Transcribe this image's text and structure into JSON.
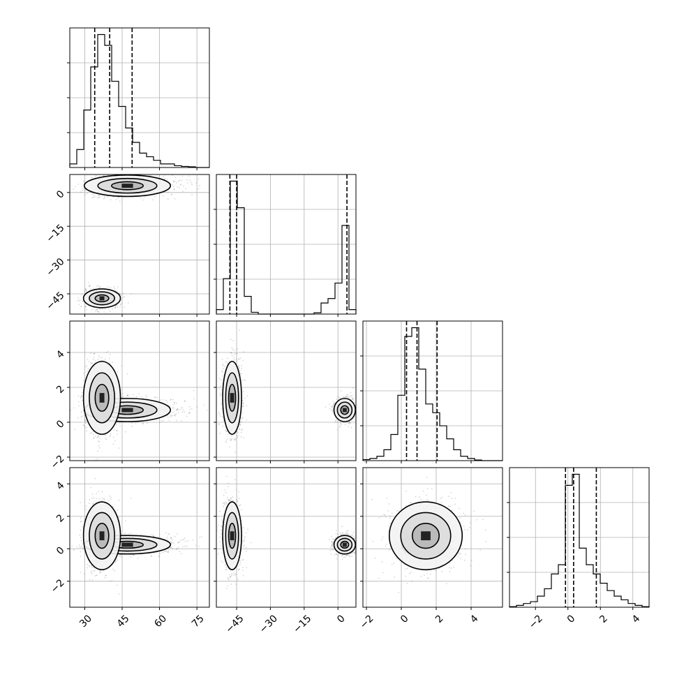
{
  "chart_data": {
    "type": "corner",
    "grid": true,
    "quantile_style": "dashed",
    "variables": [
      {
        "id": "p0",
        "label": "",
        "range": [
          24,
          80
        ],
        "ticks": [
          30,
          45,
          60,
          75
        ],
        "quantiles": [
          34,
          40,
          49
        ],
        "hist": {
          "edges": [
            24,
            26.8,
            29.6,
            32.4,
            35.2,
            38,
            40.8,
            43.6,
            46.4,
            49.2,
            52,
            54.8,
            57.6,
            60.4,
            63.2,
            66,
            68.8,
            71.6,
            74.4,
            77.2,
            80
          ],
          "counts": [
            1,
            5,
            16,
            28,
            37,
            34,
            24,
            17,
            11,
            7,
            4,
            3,
            2,
            1,
            1,
            0.5,
            0.3,
            0.2,
            0,
            0
          ]
        },
        "clusters": [
          {
            "w": 0.5,
            "mean": 45,
            "sd": 7,
            "skew": 1.7
          },
          {
            "w": 0.5,
            "mean": 36,
            "sd": 3,
            "skew": 1.3
          }
        ]
      },
      {
        "id": "p1",
        "label": "",
        "range": [
          -54,
          8
        ],
        "ticks": [
          0,
          -15,
          -30,
          -45
        ],
        "quantiles": [
          -48,
          -45,
          4
        ],
        "hist": {
          "edges": [
            -54,
            -50.9,
            -47.8,
            -44.7,
            -41.6,
            -38.5,
            -35.4,
            -32.3,
            -29.2,
            -26.1,
            -23,
            -19.9,
            -16.8,
            -13.7,
            -10.6,
            -7.5,
            -4.4,
            -1.3,
            1.8,
            4.9,
            8
          ],
          "counts": [
            1,
            8,
            30,
            24,
            4,
            0.4,
            0,
            0,
            0,
            0,
            0,
            0,
            0,
            0,
            0.3,
            2.5,
            3.5,
            7,
            20,
            1
          ]
        },
        "clusters": [
          {
            "w": 0.5,
            "mean": 3,
            "sd": 2.5,
            "skew": 1
          },
          {
            "w": 0.5,
            "mean": -47,
            "sd": 2.2,
            "skew": 1
          }
        ]
      },
      {
        "id": "p2",
        "label": "",
        "range": [
          -2.2,
          5.8
        ],
        "ticks": [
          -2,
          0,
          2,
          4
        ],
        "quantiles": [
          0.3,
          0.9,
          2.05
        ],
        "hist": {
          "edges": [
            -2.2,
            -1.8,
            -1.4,
            -1,
            -0.6,
            -0.2,
            0.2,
            0.6,
            1,
            1.4,
            1.8,
            2.2,
            2.6,
            3,
            3.4,
            3.8,
            4.2,
            4.6,
            5,
            5.4,
            5.8
          ],
          "counts": [
            0.5,
            1,
            2,
            5,
            12,
            30,
            57,
            61,
            42,
            26,
            22,
            16,
            10,
            5,
            2,
            1,
            0.3,
            0,
            0,
            0
          ]
        },
        "clusters": [
          {
            "w": 0.5,
            "mean": 0.7,
            "sd": 0.35,
            "skew": 1
          },
          {
            "w": 0.5,
            "mean": 1.4,
            "sd": 1.1,
            "skew": 1
          }
        ]
      },
      {
        "id": "p3",
        "label": "",
        "range": [
          -3.6,
          5.0
        ],
        "ticks": [
          -2,
          0,
          2,
          4
        ],
        "quantiles": [
          -0.15,
          0.35,
          1.75
        ],
        "hist": {
          "edges": [
            -3.6,
            -3.17,
            -2.74,
            -2.31,
            -1.88,
            -1.45,
            -1.02,
            -0.59,
            -0.16,
            0.27,
            0.7,
            1.13,
            1.56,
            1.99,
            2.42,
            2.85,
            3.28,
            3.71,
            4.14,
            4.57,
            5
          ],
          "counts": [
            0.3,
            1,
            2,
            3,
            6,
            10,
            18,
            23,
            66,
            72,
            32,
            23,
            18,
            13,
            9,
            6,
            4,
            2,
            1,
            0.3
          ]
        },
        "clusters": [
          {
            "w": 0.5,
            "mean": 0.25,
            "sd": 0.3,
            "skew": 1
          },
          {
            "w": 0.5,
            "mean": 0.8,
            "sd": 1.1,
            "skew": 1
          }
        ]
      }
    ]
  }
}
